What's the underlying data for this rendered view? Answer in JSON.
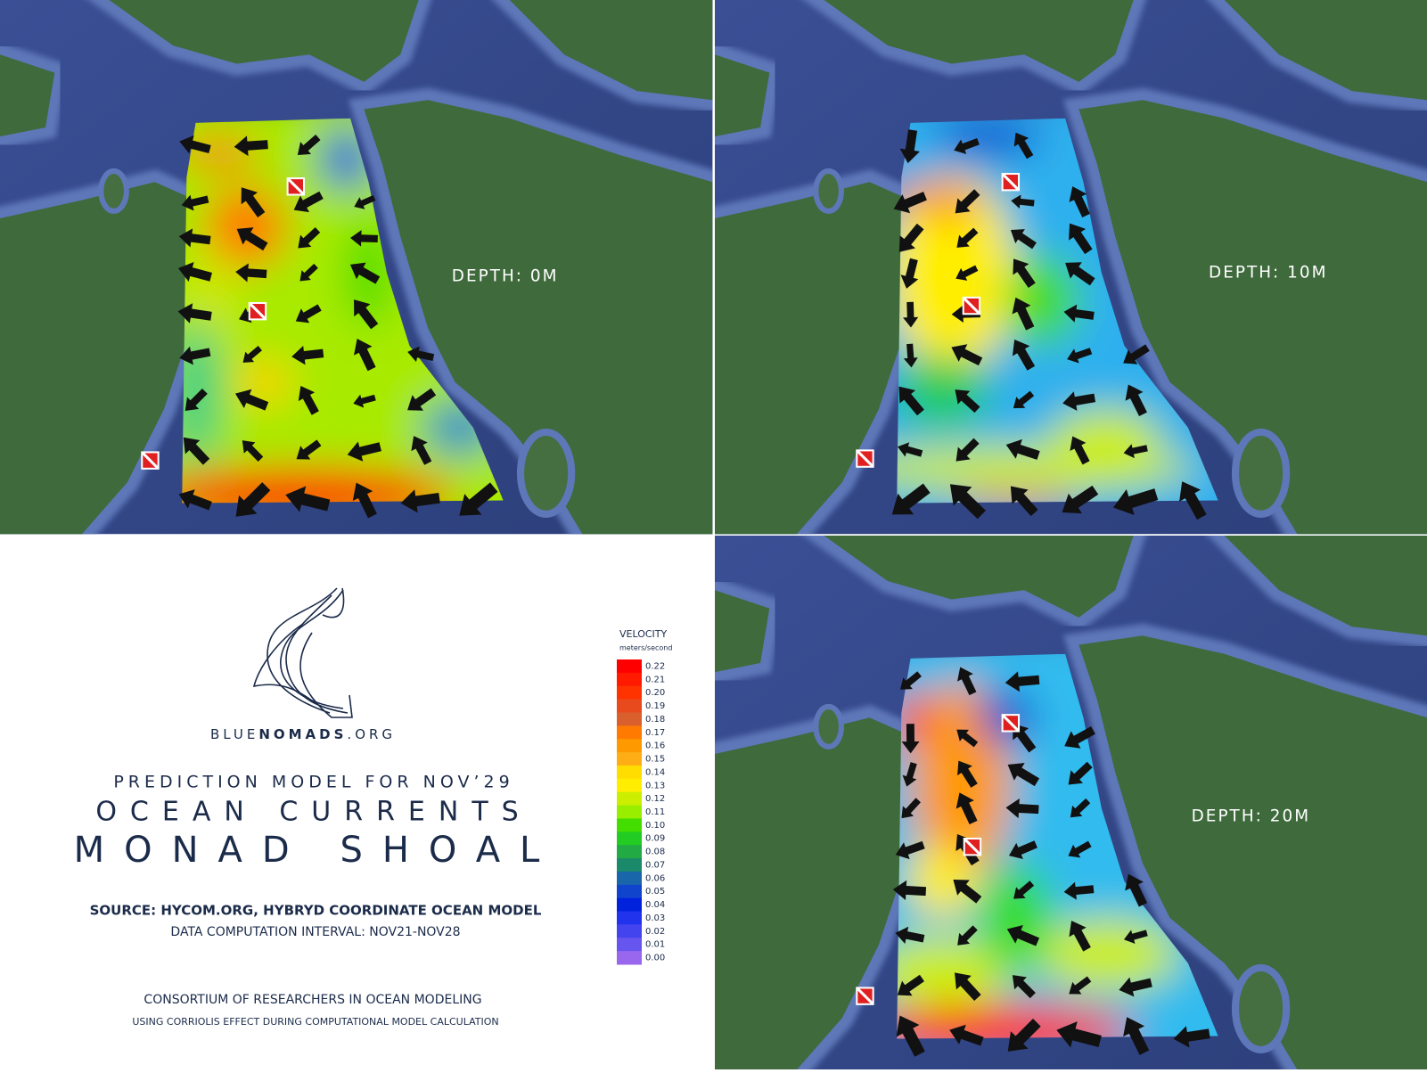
{
  "panels": [
    {
      "depth_label": "DEPTH: 0M"
    },
    {
      "depth_label": "DEPTH: 10M"
    },
    {
      "depth_label": "DEPTH: 20M"
    }
  ],
  "info": {
    "logo": {
      "parts": [
        "BLUE",
        "NOMADS",
        ".ORG"
      ]
    },
    "subtitle": "PREDICTION MODEL FOR NOV’29",
    "title": "OCEAN CURRENTS",
    "location": "MONAD SHOAL",
    "source": "SOURCE: HYCOM.ORG, HYBRYD COORDINATE OCEAN MODEL",
    "interval": "DATA COMPUTATION INTERVAL: NOV21-NOV28",
    "consortium": "CONSORTIUM OF RESEARCHERS IN OCEAN MODELING",
    "note": "USING CORRIOLIS EFFECT  DURING COMPUTATIONAL MODEL CALCULATION"
  },
  "legend": {
    "title": "VELOCITY",
    "unit": "meters/second",
    "entries": [
      {
        "label": "0.22",
        "color": "#ff0000"
      },
      {
        "label": "0.21",
        "color": "#ff1a00"
      },
      {
        "label": "0.20",
        "color": "#ff3300"
      },
      {
        "label": "0.19",
        "color": "#e84a1e"
      },
      {
        "label": "0.18",
        "color": "#d9602c"
      },
      {
        "label": "0.17",
        "color": "#ff7a00"
      },
      {
        "label": "0.16",
        "color": "#ff9900"
      },
      {
        "label": "0.15",
        "color": "#ffad14"
      },
      {
        "label": "0.14",
        "color": "#ffdd00"
      },
      {
        "label": "0.13",
        "color": "#ffee00"
      },
      {
        "label": "0.12",
        "color": "#ccee00"
      },
      {
        "label": "0.11",
        "color": "#99ee00"
      },
      {
        "label": "0.10",
        "color": "#44dd00"
      },
      {
        "label": "0.09",
        "color": "#22cc22"
      },
      {
        "label": "0.08",
        "color": "#22aa44"
      },
      {
        "label": "0.07",
        "color": "#1a8a6a"
      },
      {
        "label": "0.06",
        "color": "#1a66aa"
      },
      {
        "label": "0.05",
        "color": "#1144cc"
      },
      {
        "label": "0.04",
        "color": "#0022dd"
      },
      {
        "label": "0.03",
        "color": "#2233ee"
      },
      {
        "label": "0.02",
        "color": "#4444ee"
      },
      {
        "label": "0.01",
        "color": "#6655ee"
      },
      {
        "label": "0.00",
        "color": "#9966ee"
      }
    ]
  }
}
